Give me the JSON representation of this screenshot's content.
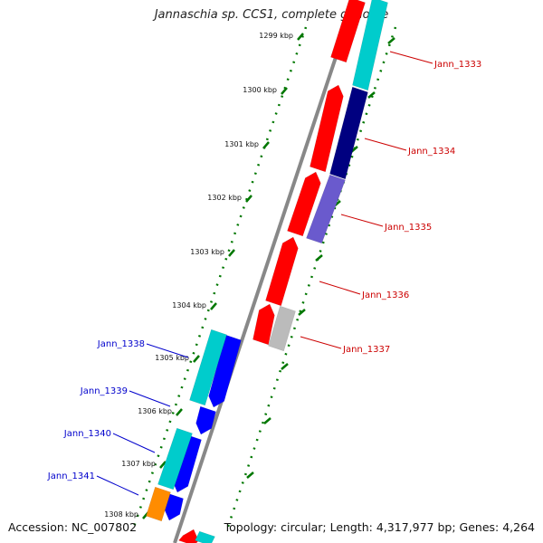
{
  "title": "Jannaschia sp. CCS1, complete genome",
  "accession": "Accession: NC_007802",
  "summary": "Topology: circular; Length: 4,317,977 bp; Genes: 4,264",
  "ticks": [
    "1299 kbp",
    "1300 kbp",
    "1301 kbp",
    "1302 kbp",
    "1303 kbp",
    "1304 kbp",
    "1305 kbp",
    "1306 kbp",
    "1307 kbp",
    "1308 kbp"
  ],
  "genes_reverse": [
    "Jann_1333",
    "Jann_1334",
    "Jann_1335",
    "Jann_1336",
    "Jann_1337"
  ],
  "genes_forward": [
    "Jann_1338",
    "Jann_1339",
    "Jann_1340",
    "Jann_1341"
  ],
  "colors": {
    "reverse_cds": "#ff0000",
    "forward_cds": "#0000ff",
    "cyan_feature": "#00cccc",
    "navy_feature": "#000080",
    "slate_feature": "#6a5acd",
    "gray_feature": "#bbbbbb",
    "orange_feature": "#ff8c00",
    "backbone": "#888888",
    "tick_marks": "#007700",
    "reverse_label": "#cc0000",
    "forward_label": "#0000cc"
  }
}
